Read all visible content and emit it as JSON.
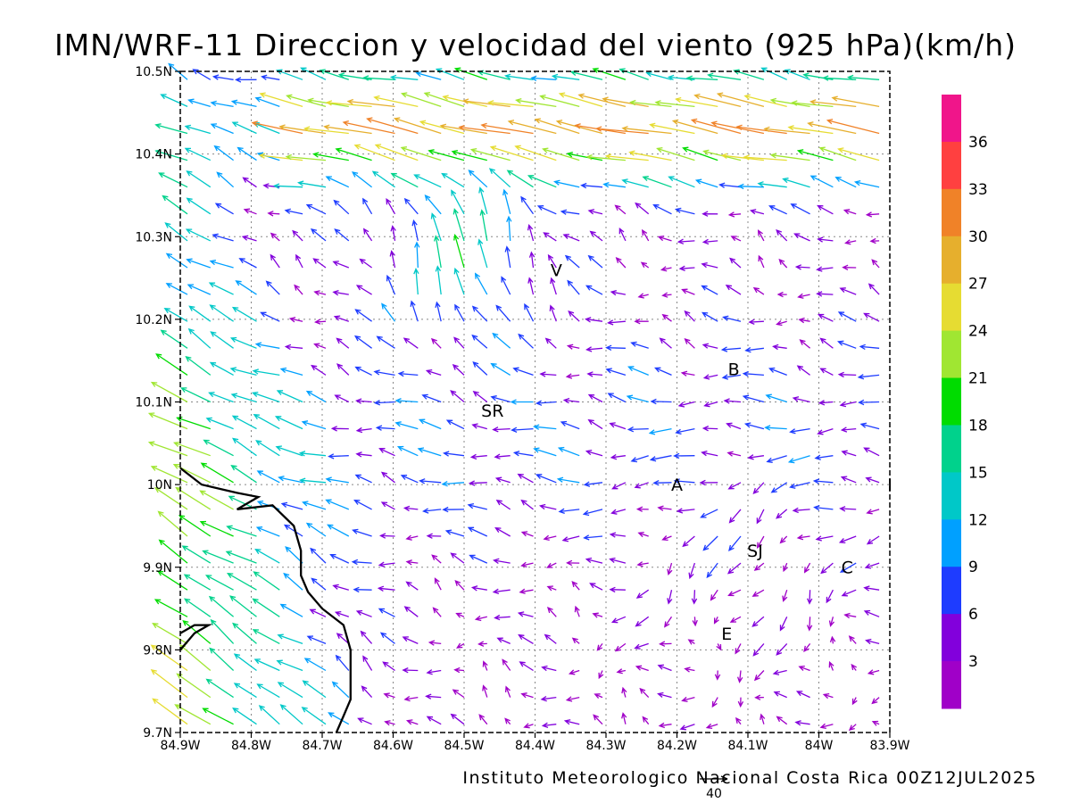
{
  "title": "IMN/WRF-11 Direccion y velocidad del viento (925 hPa)(km/h)",
  "credit": "Instituto Meteorologico Nacional Costa Rica 00Z12JUL2025",
  "reference_vector_label": "40",
  "axes": {
    "x_ticks": [
      "84.9W",
      "84.8W",
      "84.7W",
      "84.6W",
      "84.5W",
      "84.4W",
      "84.3W",
      "84.2W",
      "84.1W",
      "84W",
      "83.9W"
    ],
    "x_values": [
      -84.9,
      -84.8,
      -84.7,
      -84.6,
      -84.5,
      -84.4,
      -84.3,
      -84.2,
      -84.1,
      -84.0,
      -83.9
    ],
    "y_ticks": [
      "9.7N",
      "9.8N",
      "9.9N",
      "10N",
      "10.1N",
      "10.2N",
      "10.3N",
      "10.4N",
      "10.5N"
    ],
    "y_values": [
      9.7,
      9.8,
      9.9,
      10.0,
      10.1,
      10.2,
      10.3,
      10.4,
      10.5
    ],
    "lon_range": [
      -84.9,
      -83.9
    ],
    "lat_range": [
      9.7,
      10.5
    ],
    "grid": true
  },
  "colorbar": {
    "labels": [
      "36",
      "33",
      "30",
      "27",
      "24",
      "21",
      "18",
      "15",
      "12",
      "9",
      "6",
      "3"
    ],
    "colors": [
      "#f0158a",
      "#ff4040",
      "#f08228",
      "#e6af2d",
      "#e6dc32",
      "#a0e632",
      "#00dc00",
      "#00d28c",
      "#00c8c8",
      "#00a0ff",
      "#1e3cff",
      "#8200dc",
      "#a000c8"
    ]
  },
  "places": [
    {
      "label": "V",
      "lon": -84.37,
      "lat": 10.26
    },
    {
      "label": "B",
      "lon": -84.12,
      "lat": 10.14
    },
    {
      "label": "SR",
      "lon": -84.46,
      "lat": 10.09
    },
    {
      "label": "A",
      "lon": -84.2,
      "lat": 10.0
    },
    {
      "label": "I",
      "lon": -83.9,
      "lat": 10.0
    },
    {
      "label": "SJ",
      "lon": -84.09,
      "lat": 9.92
    },
    {
      "label": "C",
      "lon": -83.96,
      "lat": 9.9
    },
    {
      "label": "E",
      "lon": -84.13,
      "lat": 9.82
    }
  ],
  "coastline": [
    [
      -84.9,
      10.02
    ],
    [
      -84.87,
      10.0
    ],
    [
      -84.82,
      9.99
    ],
    [
      -84.79,
      9.985
    ],
    [
      -84.82,
      9.97
    ],
    [
      -84.77,
      9.975
    ],
    [
      -84.74,
      9.95
    ],
    [
      -84.73,
      9.92
    ],
    [
      -84.73,
      9.89
    ],
    [
      -84.72,
      9.87
    ],
    [
      -84.7,
      9.85
    ],
    [
      -84.67,
      9.83
    ],
    [
      -84.66,
      9.8
    ],
    [
      -84.66,
      9.77
    ],
    [
      -84.66,
      9.74
    ],
    [
      -84.67,
      9.72
    ],
    [
      -84.68,
      9.7
    ]
  ],
  "coastline_sw": [
    [
      -84.9,
      9.82
    ],
    [
      -84.88,
      9.83
    ],
    [
      -84.86,
      9.83
    ],
    [
      -84.88,
      9.82
    ],
    [
      -84.9,
      9.8
    ]
  ],
  "wind_field_description": "Arrows show wind direction, coloured by speed (km/h)"
}
